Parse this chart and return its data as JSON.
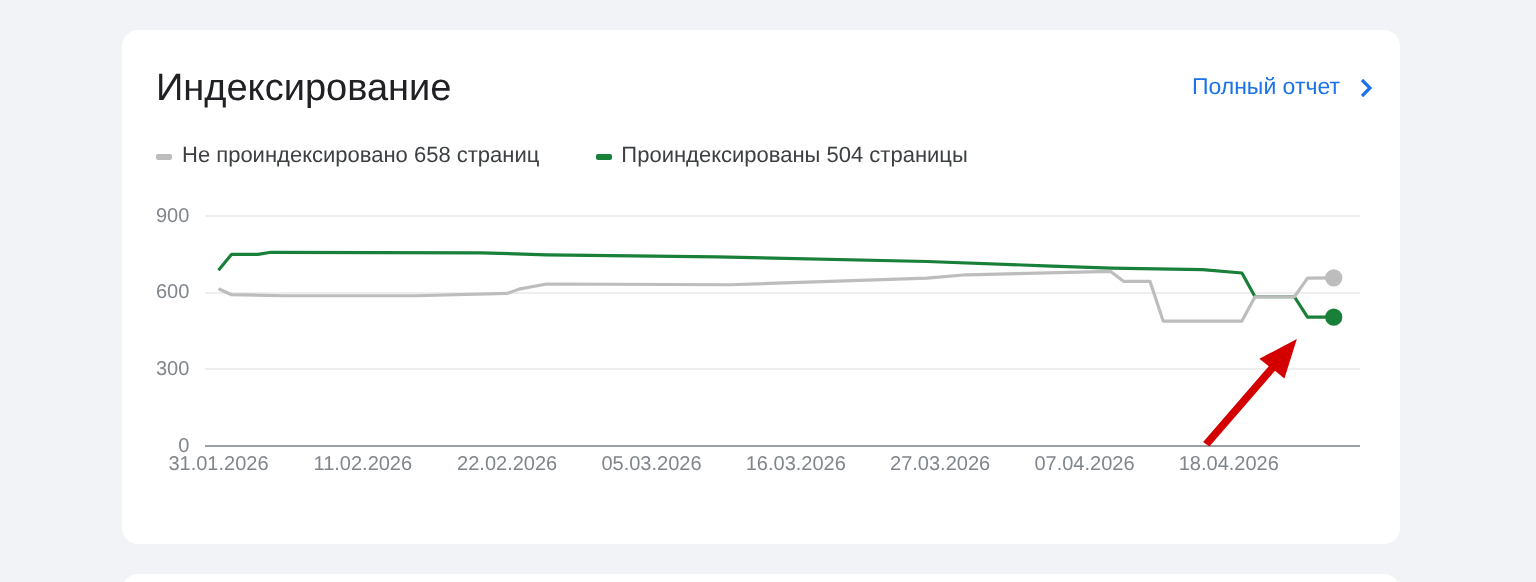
{
  "chart_data": {
    "type": "line",
    "title": "Индексирование",
    "annotations": [
      "Полный отчет"
    ],
    "legend": "top left",
    "grid": "y",
    "xlim": [
      "2026-01-30",
      "2026-04-28"
    ],
    "xticks": [
      {
        "value": "2026-01-31",
        "label": "31.01.2026"
      },
      {
        "value": "2026-02-11",
        "label": "11.02.2026"
      },
      {
        "value": "2026-02-22",
        "label": "22.02.2026"
      },
      {
        "value": "2026-03-05",
        "label": "05.03.2026"
      },
      {
        "value": "2026-03-16",
        "label": "16.03.2026"
      },
      {
        "value": "2026-03-27",
        "label": "27.03.2026"
      },
      {
        "value": "2026-04-07",
        "label": "07.04.2026"
      },
      {
        "value": "2026-04-18",
        "label": "18.04.2026"
      }
    ],
    "ylim": [
      0,
      900
    ],
    "yticks": [
      0,
      300,
      600,
      900
    ],
    "series": [
      {
        "name": "Не проиндексировано 658 страниц",
        "color": "#bdbdbd",
        "x": [
          "2026-01-31",
          "2026-02-01",
          "2026-02-05",
          "2026-02-15",
          "2026-02-22",
          "2026-02-23",
          "2026-02-25",
          "2026-03-11",
          "2026-03-26",
          "2026-03-29",
          "2026-04-09",
          "2026-04-10",
          "2026-04-12",
          "2026-04-13",
          "2026-04-19",
          "2026-04-20",
          "2026-04-23",
          "2026-04-24",
          "2026-04-26"
        ],
        "values": [
          615,
          592,
          588,
          588,
          597,
          615,
          634,
          631,
          657,
          670,
          683,
          644,
          644,
          489,
          489,
          584,
          584,
          657,
          658
        ]
      },
      {
        "name": "Проиндексированы 504 страницы",
        "color": "#188038",
        "x": [
          "2026-01-31",
          "2026-02-01",
          "2026-02-03",
          "2026-02-04",
          "2026-02-20",
          "2026-02-25",
          "2026-03-10",
          "2026-03-26",
          "2026-04-04",
          "2026-04-09",
          "2026-04-16",
          "2026-04-19",
          "2026-04-20",
          "2026-04-23",
          "2026-04-24",
          "2026-04-26"
        ],
        "values": [
          688,
          750,
          750,
          758,
          756,
          748,
          740,
          722,
          705,
          696,
          690,
          677,
          584,
          584,
          504,
          504
        ]
      }
    ]
  }
}
